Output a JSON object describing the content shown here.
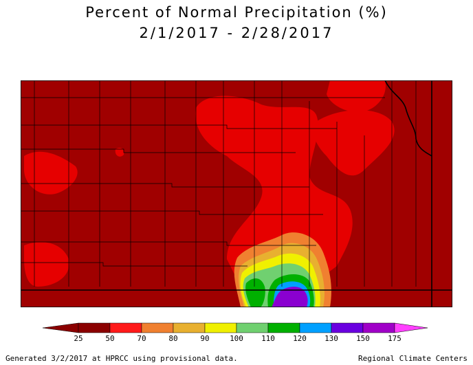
{
  "title": {
    "line1": "Percent of Normal Precipitation (%)",
    "line2": "2/1/2017 - 2/28/2017"
  },
  "legend": {
    "stops": [
      {
        "value": "25",
        "color": "#8b0000"
      },
      {
        "value": "50",
        "color": "#ff1a1a"
      },
      {
        "value": "70",
        "color": "#f08030"
      },
      {
        "value": "80",
        "color": "#e8b030"
      },
      {
        "value": "90",
        "color": "#f0f000"
      },
      {
        "value": "100",
        "color": "#70d070"
      },
      {
        "value": "110",
        "color": "#00b000"
      },
      {
        "value": "120",
        "color": "#00a0ff"
      },
      {
        "value": "130",
        "color": "#6a00e0"
      },
      {
        "value": "150",
        "color": "#a000c8"
      },
      {
        "value": "175",
        "color": "#ff40ff"
      }
    ],
    "below_color": "#8b0000",
    "above_color": "#ff40ff"
  },
  "map": {
    "colors": {
      "base": "#a00000",
      "red": "#e60000",
      "orange": "#f08030",
      "gold": "#e8b030",
      "yellow": "#f0f000",
      "lightgreen": "#70d070",
      "green": "#00b000",
      "blue": "#00a0ff",
      "purple": "#8a00d0",
      "border": "#000000"
    }
  },
  "footer": {
    "left": "Generated 3/2/2017 at HPRCC using provisional data.",
    "right": "Regional Climate Centers"
  }
}
